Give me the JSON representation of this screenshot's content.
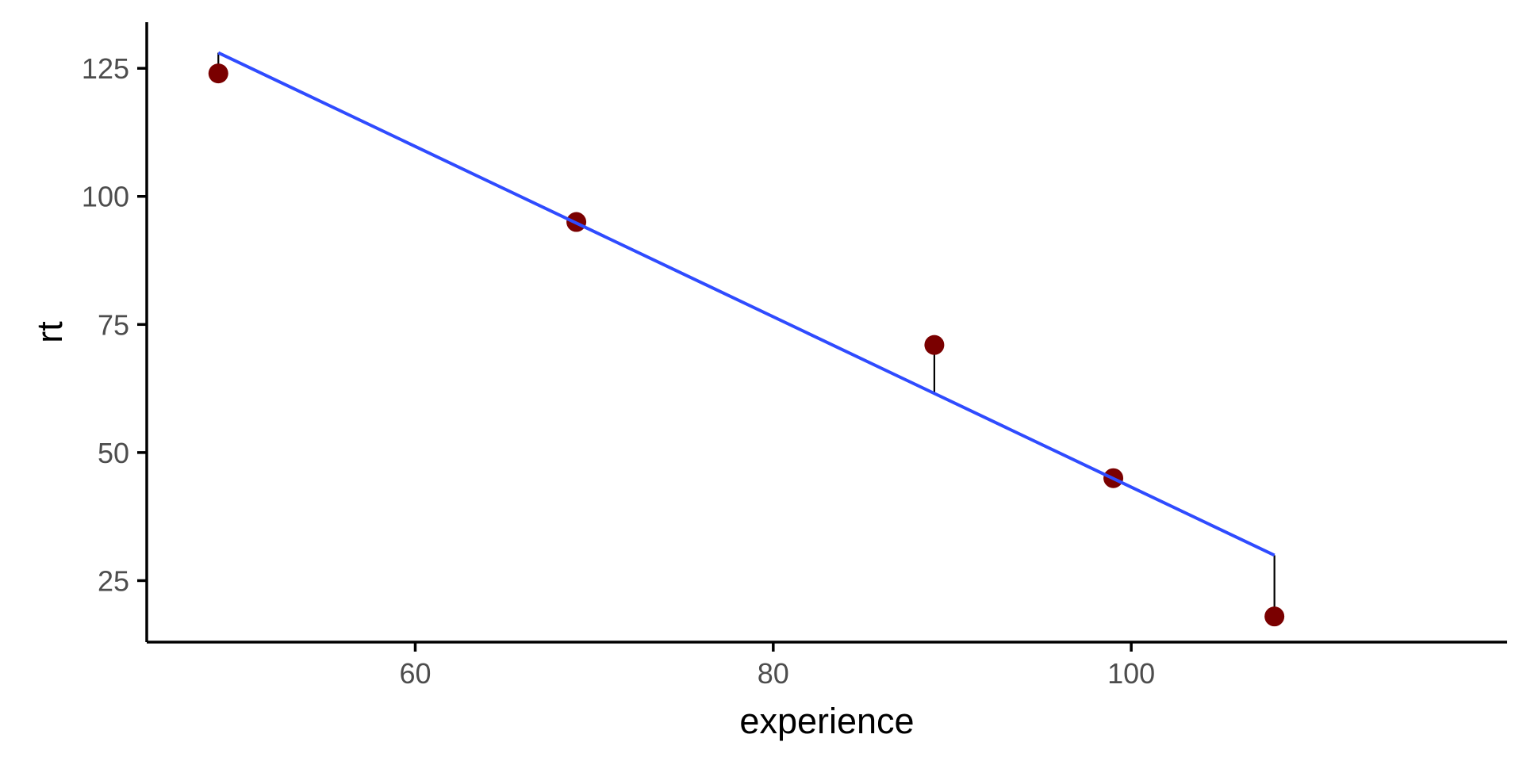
{
  "chart_data": {
    "type": "scatter",
    "xlabel": "experience",
    "ylabel": "rt",
    "xlim": [
      45,
      121
    ],
    "ylim": [
      13,
      134
    ],
    "x_ticks": [
      60,
      80,
      100
    ],
    "y_ticks": [
      25,
      50,
      75,
      100,
      125
    ],
    "grid": false,
    "legend": "none",
    "points": {
      "x": [
        49,
        69,
        89,
        99,
        108
      ],
      "y": [
        124,
        95,
        71,
        45,
        18
      ]
    },
    "fit_line": {
      "intercept": 209.5,
      "slope": -1.6625
    },
    "colors": {
      "points": "#7a0000",
      "fit_line": "#2f4bff",
      "residuals": "#000000",
      "axes": "#000000"
    }
  }
}
